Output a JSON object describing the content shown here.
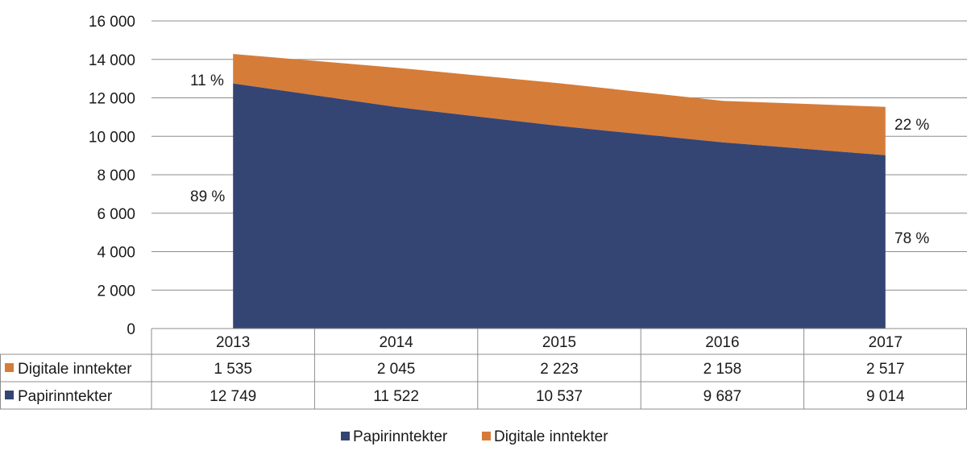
{
  "chart_data": {
    "type": "area",
    "stacked": true,
    "categories": [
      "2013",
      "2014",
      "2015",
      "2016",
      "2017"
    ],
    "series": [
      {
        "name": "Papirinntekter",
        "values": [
          12749,
          11522,
          10537,
          9687,
          9014
        ],
        "color": "#344574",
        "display": [
          "12 749",
          "11 522",
          "10 537",
          "9 687",
          "9 014"
        ]
      },
      {
        "name": "Digitale inntekter",
        "values": [
          1535,
          2045,
          2223,
          2158,
          2517
        ],
        "color": "#d67c39",
        "display": [
          "1 535",
          "2 045",
          "2 223",
          "2 158",
          "2 517"
        ]
      }
    ],
    "ylim": [
      0,
      16000
    ],
    "yticks": [
      {
        "value": 0,
        "label": "0"
      },
      {
        "value": 2000,
        "label": "2 000"
      },
      {
        "value": 4000,
        "label": "4 000"
      },
      {
        "value": 6000,
        "label": "6 000"
      },
      {
        "value": 8000,
        "label": "8 000"
      },
      {
        "value": 10000,
        "label": "10 000"
      },
      {
        "value": 12000,
        "label": "12 000"
      },
      {
        "value": 14000,
        "label": "14 000"
      },
      {
        "value": 16000,
        "label": "16 000"
      }
    ],
    "annotations": {
      "digital_start": "11 %",
      "paper_start": "89 %",
      "digital_end": "22 %",
      "paper_end": "78 %"
    },
    "grid": true,
    "legend_position": "bottom",
    "data_table": true
  }
}
